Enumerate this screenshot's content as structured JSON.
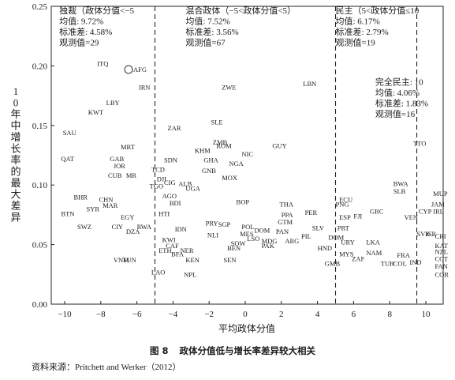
{
  "chart_data": {
    "type": "scatter",
    "xlabel": "平均政体分值",
    "ylabel": "10年中增长率的最大差异",
    "xlim": [
      -11,
      10.4
    ],
    "ylim": [
      0,
      0.25
    ],
    "xticks": [
      -10,
      -8,
      -6,
      -4,
      -2,
      0,
      2,
      4,
      6,
      8,
      10
    ],
    "yticks": [
      0,
      0.05,
      0.1,
      0.15,
      0.2,
      0.25
    ],
    "ytick_labels": [
      "0.00",
      "0.05",
      "0.10",
      "0.15",
      "0.20",
      "0.25"
    ],
    "vlines": [
      -5,
      5,
      9.5
    ],
    "grid": false,
    "regions": [
      {
        "x": -10.3,
        "y": 0.244,
        "lines": [
          "独裁（政体分值<−5",
          "均值:  9.72%",
          "标准差:   4.58%",
          "观测值=29"
        ]
      },
      {
        "x": -3.3,
        "y": 0.244,
        "lines": [
          "混合政体（−5<政体分值<5）",
          "均值:   7.52%",
          "标准差:   3.56%",
          "观测值=67"
        ]
      },
      {
        "x": 5.0,
        "y": 0.244,
        "lines": [
          "民主（5<政体分值≤10",
          "均值:  6.17%",
          "标准差:    2.79%",
          "观测值=19"
        ]
      },
      {
        "x": 7.2,
        "y": 0.184,
        "lines": [
          "完全民主:  10",
          "均值:  4.06%",
          "标准差:  1.83%",
          "观测值=16"
        ]
      }
    ],
    "points": [
      {
        "label": "AFG",
        "x": -6.2,
        "y": 0.195,
        "circled": true
      },
      {
        "label": "ITQ",
        "x": -8.2,
        "y": 0.2
      },
      {
        "label": "IRN",
        "x": -5.9,
        "y": 0.18
      },
      {
        "label": "LBY",
        "x": -7.7,
        "y": 0.167
      },
      {
        "label": "KWT",
        "x": -8.7,
        "y": 0.159
      },
      {
        "label": "SAU",
        "x": -10.1,
        "y": 0.142
      },
      {
        "label": "QAT",
        "x": -10.2,
        "y": 0.12
      },
      {
        "label": "MRT",
        "x": -6.9,
        "y": 0.13
      },
      {
        "label": "GAB",
        "x": -7.5,
        "y": 0.12
      },
      {
        "label": "JOR",
        "x": -7.3,
        "y": 0.114
      },
      {
        "label": "CUB",
        "x": -7.6,
        "y": 0.106
      },
      {
        "label": "MR",
        "x": -6.6,
        "y": 0.106
      },
      {
        "label": "BHR",
        "x": -9.5,
        "y": 0.088
      },
      {
        "label": "CHN",
        "x": -8.1,
        "y": 0.086
      },
      {
        "label": "MAR",
        "x": -7.9,
        "y": 0.081
      },
      {
        "label": "SYR",
        "x": -8.8,
        "y": 0.078
      },
      {
        "label": "BTN",
        "x": -10.2,
        "y": 0.074
      },
      {
        "label": "EGY",
        "x": -6.9,
        "y": 0.071
      },
      {
        "label": "SWZ",
        "x": -9.3,
        "y": 0.063
      },
      {
        "label": "CIY",
        "x": -7.4,
        "y": 0.063
      },
      {
        "label": "RWA",
        "x": -6.0,
        "y": 0.063
      },
      {
        "label": "DZA",
        "x": -6.6,
        "y": 0.059
      },
      {
        "label": "VNM",
        "x": -7.3,
        "y": 0.035
      },
      {
        "label": "TUN",
        "x": -6.8,
        "y": 0.035
      },
      {
        "label": "ZAR",
        "x": -4.3,
        "y": 0.146
      },
      {
        "label": "SDN",
        "x": -4.5,
        "y": 0.119
      },
      {
        "label": "TCD",
        "x": -5.2,
        "y": 0.111
      },
      {
        "label": "DJI",
        "x": -4.9,
        "y": 0.103
      },
      {
        "label": "CIG",
        "x": -4.5,
        "y": 0.1
      },
      {
        "label": "TGO",
        "x": -5.3,
        "y": 0.097
      },
      {
        "label": "AGO",
        "x": -4.6,
        "y": 0.089
      },
      {
        "label": "BDI",
        "x": -4.2,
        "y": 0.083
      },
      {
        "label": "ALB",
        "x": -3.7,
        "y": 0.099
      },
      {
        "label": "UGA",
        "x": -3.3,
        "y": 0.095
      },
      {
        "label": "HTI",
        "x": -4.8,
        "y": 0.074
      },
      {
        "label": "IDN",
        "x": -3.9,
        "y": 0.061
      },
      {
        "label": "CAF",
        "x": -4.4,
        "y": 0.047
      },
      {
        "label": "ETH",
        "x": -4.8,
        "y": 0.043
      },
      {
        "label": "BFA",
        "x": -4.1,
        "y": 0.04
      },
      {
        "label": "NER",
        "x": -3.6,
        "y": 0.043
      },
      {
        "label": "KEN",
        "x": -3.3,
        "y": 0.035
      },
      {
        "label": "LAO",
        "x": -5.2,
        "y": 0.025
      },
      {
        "label": "NPL",
        "x": -3.4,
        "y": 0.023
      },
      {
        "label": "KWI",
        "x": -4.6,
        "y": 0.052
      },
      {
        "label": "SLE",
        "x": -1.9,
        "y": 0.151
      },
      {
        "label": "ZMB",
        "x": -1.8,
        "y": 0.134
      },
      {
        "label": "ROM",
        "x": -1.6,
        "y": 0.131
      },
      {
        "label": "KHM",
        "x": -2.8,
        "y": 0.127
      },
      {
        "label": "GHA",
        "x": -2.3,
        "y": 0.119
      },
      {
        "label": "NGA",
        "x": -0.9,
        "y": 0.116
      },
      {
        "label": "GNB",
        "x": -2.4,
        "y": 0.11
      },
      {
        "label": "MOX",
        "x": -1.3,
        "y": 0.104
      },
      {
        "label": "NIC",
        "x": -0.2,
        "y": 0.124
      },
      {
        "label": "GUY",
        "x": 1.5,
        "y": 0.131
      },
      {
        "label": "ZWE",
        "x": -1.3,
        "y": 0.18
      },
      {
        "label": "LBN",
        "x": 3.2,
        "y": 0.183
      },
      {
        "label": "BOP",
        "x": -0.5,
        "y": 0.084
      },
      {
        "label": "PRY",
        "x": -2.2,
        "y": 0.066
      },
      {
        "label": "SGP",
        "x": -1.5,
        "y": 0.065
      },
      {
        "label": "POL",
        "x": -0.2,
        "y": 0.063
      },
      {
        "label": "DOM",
        "x": 0.5,
        "y": 0.06
      },
      {
        "label": "NLI",
        "x": -2.1,
        "y": 0.056
      },
      {
        "label": "MES",
        "x": -0.3,
        "y": 0.057
      },
      {
        "label": "LSO",
        "x": 0.1,
        "y": 0.053
      },
      {
        "label": "MDG",
        "x": 0.9,
        "y": 0.051
      },
      {
        "label": "SOW",
        "x": -0.8,
        "y": 0.049
      },
      {
        "label": "BEN",
        "x": -1.0,
        "y": 0.045
      },
      {
        "label": "PAK",
        "x": 0.9,
        "y": 0.047
      },
      {
        "label": "SEN",
        "x": -1.2,
        "y": 0.035
      },
      {
        "label": "THA",
        "x": 1.9,
        "y": 0.082
      },
      {
        "label": "PPA",
        "x": 2.0,
        "y": 0.073
      },
      {
        "label": "GTM",
        "x": 1.8,
        "y": 0.067
      },
      {
        "label": "PER",
        "x": 3.3,
        "y": 0.075
      },
      {
        "label": "PAN",
        "x": 1.7,
        "y": 0.059
      },
      {
        "label": "ARG",
        "x": 2.2,
        "y": 0.051
      },
      {
        "label": "PIL",
        "x": 3.1,
        "y": 0.055
      },
      {
        "label": "SLV",
        "x": 3.7,
        "y": 0.062
      },
      {
        "label": "DOM",
        "x": 4.6,
        "y": 0.054
      },
      {
        "label": "HND",
        "x": 4.0,
        "y": 0.045
      },
      {
        "label": "GMB",
        "x": 4.4,
        "y": 0.032
      },
      {
        "label": "ECU",
        "x": 5.2,
        "y": 0.086
      },
      {
        "label": "PNG",
        "x": 5.0,
        "y": 0.082
      },
      {
        "label": "ESP",
        "x": 5.2,
        "y": 0.071
      },
      {
        "label": "PRT",
        "x": 5.1,
        "y": 0.062
      },
      {
        "label": "URY",
        "x": 5.3,
        "y": 0.05
      },
      {
        "label": "MYS",
        "x": 5.2,
        "y": 0.04
      },
      {
        "label": "FJI",
        "x": 6.0,
        "y": 0.072
      },
      {
        "label": "GRC",
        "x": 6.9,
        "y": 0.076
      },
      {
        "label": "BWA",
        "x": 8.2,
        "y": 0.099
      },
      {
        "label": "SLB",
        "x": 8.2,
        "y": 0.093
      },
      {
        "label": "VEN",
        "x": 8.8,
        "y": 0.071
      },
      {
        "label": "CYP",
        "x": 9.6,
        "y": 0.076
      },
      {
        "label": "LKA",
        "x": 6.7,
        "y": 0.05
      },
      {
        "label": "NAM",
        "x": 6.7,
        "y": 0.041
      },
      {
        "label": "ZAF",
        "x": 5.9,
        "y": 0.036
      },
      {
        "label": "TUR",
        "x": 7.5,
        "y": 0.032
      },
      {
        "label": "COL",
        "x": 8.2,
        "y": 0.032
      },
      {
        "label": "FRA",
        "x": 8.4,
        "y": 0.039
      },
      {
        "label": "IND",
        "x": 9.1,
        "y": 0.033
      },
      {
        "label": "SVK",
        "x": 9.5,
        "y": 0.057
      },
      {
        "label": "ISR",
        "x": 10.0,
        "y": 0.057
      },
      {
        "label": "TTO",
        "x": 9.3,
        "y": 0.133
      },
      {
        "label": "MUP",
        "x": 10.4,
        "y": 0.091
      },
      {
        "label": "JAM",
        "x": 10.3,
        "y": 0.082
      },
      {
        "label": "IRL",
        "x": 10.4,
        "y": 0.076
      },
      {
        "label": "CRI",
        "x": 10.5,
        "y": 0.055
      },
      {
        "label": "KAT",
        "x": 10.5,
        "y": 0.047
      },
      {
        "label": "NZL",
        "x": 10.5,
        "y": 0.042
      },
      {
        "label": "CCT",
        "x": 10.5,
        "y": 0.036
      },
      {
        "label": "FAN",
        "x": 10.5,
        "y": 0.03
      },
      {
        "label": "COR",
        "x": 10.5,
        "y": 0.023
      }
    ]
  },
  "caption": {
    "figure_label": "图 8",
    "title": "政体分值低与增长率差异较大相关",
    "source_prefix": "资料来源：",
    "source": "Pritchett and Werker（2012）"
  }
}
